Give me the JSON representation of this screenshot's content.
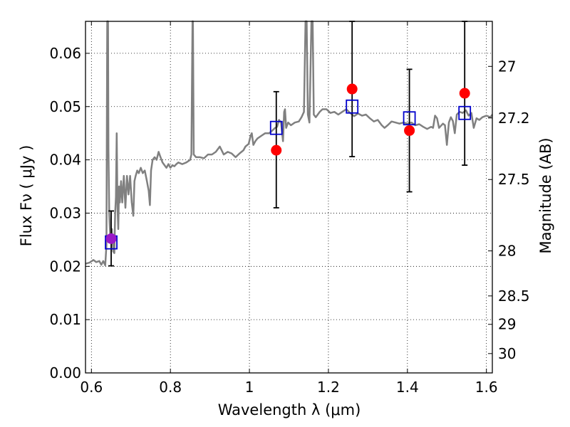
{
  "chart_data": {
    "type": "scatter",
    "title": "",
    "xlabel": "Wavelength  λ (μm)",
    "ylabel": "Flux  Fν  ( μJy )",
    "y2label": "Magnitude (AB)",
    "xlim": [
      0.585,
      1.615
    ],
    "ylim": [
      0.0,
      0.066
    ],
    "grid": true,
    "x_ticks": [
      {
        "value": 0.6,
        "label": "0.6"
      },
      {
        "value": 0.8,
        "label": "0.8"
      },
      {
        "value": 1.0,
        "label": "1"
      },
      {
        "value": 1.2,
        "label": "1.2"
      },
      {
        "value": 1.4,
        "label": "1.4"
      },
      {
        "value": 1.6,
        "label": "1.6"
      }
    ],
    "y_ticks": [
      {
        "value": 0.0,
        "label": "0.00"
      },
      {
        "value": 0.01,
        "label": "0.01"
      },
      {
        "value": 0.02,
        "label": "0.02"
      },
      {
        "value": 0.03,
        "label": "0.03"
      },
      {
        "value": 0.04,
        "label": "0.04"
      },
      {
        "value": 0.05,
        "label": "0.05"
      },
      {
        "value": 0.06,
        "label": "0.06"
      }
    ],
    "y2_ticks": [
      {
        "value": 27,
        "label": "27"
      },
      {
        "value": 27.2,
        "label": "27.2"
      },
      {
        "value": 27.5,
        "label": "27.5"
      },
      {
        "value": 28,
        "label": "28"
      },
      {
        "value": 28.5,
        "label": "28.5"
      },
      {
        "value": 29,
        "label": "29"
      },
      {
        "value": 30,
        "label": "30"
      }
    ],
    "spectrum": {
      "color": "#808080",
      "points": [
        [
          0.585,
          0.0205
        ],
        [
          0.595,
          0.0207
        ],
        [
          0.605,
          0.0212
        ],
        [
          0.612,
          0.0208
        ],
        [
          0.62,
          0.021
        ],
        [
          0.625,
          0.0203
        ],
        [
          0.63,
          0.021
        ],
        [
          0.635,
          0.0202
        ],
        [
          0.638,
          0.024
        ],
        [
          0.64,
          0.066
        ],
        [
          0.642,
          0.066
        ],
        [
          0.643,
          0.042
        ],
        [
          0.645,
          0.03
        ],
        [
          0.648,
          0.025
        ],
        [
          0.652,
          0.027
        ],
        [
          0.655,
          0.0228
        ],
        [
          0.658,
          0.0225
        ],
        [
          0.66,
          0.03
        ],
        [
          0.662,
          0.033
        ],
        [
          0.664,
          0.045
        ],
        [
          0.666,
          0.031
        ],
        [
          0.668,
          0.027
        ],
        [
          0.67,
          0.035
        ],
        [
          0.672,
          0.032
        ],
        [
          0.675,
          0.036
        ],
        [
          0.678,
          0.032
        ],
        [
          0.682,
          0.037
        ],
        [
          0.686,
          0.031
        ],
        [
          0.69,
          0.037
        ],
        [
          0.694,
          0.0335
        ],
        [
          0.698,
          0.037
        ],
        [
          0.702,
          0.032
        ],
        [
          0.706,
          0.0295
        ],
        [
          0.709,
          0.036
        ],
        [
          0.712,
          0.037
        ],
        [
          0.716,
          0.038
        ],
        [
          0.72,
          0.0375
        ],
        [
          0.725,
          0.0385
        ],
        [
          0.73,
          0.0375
        ],
        [
          0.735,
          0.038
        ],
        [
          0.74,
          0.0362
        ],
        [
          0.745,
          0.0342
        ],
        [
          0.748,
          0.0315
        ],
        [
          0.751,
          0.038
        ],
        [
          0.755,
          0.04
        ],
        [
          0.76,
          0.0405
        ],
        [
          0.765,
          0.04
        ],
        [
          0.77,
          0.0415
        ],
        [
          0.775,
          0.0405
        ],
        [
          0.78,
          0.0395
        ],
        [
          0.785,
          0.039
        ],
        [
          0.79,
          0.0385
        ],
        [
          0.795,
          0.0392
        ],
        [
          0.8,
          0.0385
        ],
        [
          0.805,
          0.039
        ],
        [
          0.81,
          0.0388
        ],
        [
          0.815,
          0.0392
        ],
        [
          0.82,
          0.0395
        ],
        [
          0.83,
          0.0392
        ],
        [
          0.84,
          0.0395
        ],
        [
          0.85,
          0.04
        ],
        [
          0.853,
          0.041
        ],
        [
          0.856,
          0.066
        ],
        [
          0.857,
          0.066
        ],
        [
          0.859,
          0.041
        ],
        [
          0.865,
          0.0405
        ],
        [
          0.875,
          0.0405
        ],
        [
          0.885,
          0.0403
        ],
        [
          0.895,
          0.041
        ],
        [
          0.905,
          0.041
        ],
        [
          0.915,
          0.0415
        ],
        [
          0.925,
          0.0425
        ],
        [
          0.935,
          0.041
        ],
        [
          0.945,
          0.0415
        ],
        [
          0.955,
          0.0412
        ],
        [
          0.965,
          0.0405
        ],
        [
          0.975,
          0.0412
        ],
        [
          0.985,
          0.0418
        ],
        [
          0.99,
          0.0425
        ],
        [
          0.998,
          0.043
        ],
        [
          1.003,
          0.0445
        ],
        [
          1.006,
          0.045
        ],
        [
          1.01,
          0.0428
        ],
        [
          1.015,
          0.0435
        ],
        [
          1.02,
          0.044
        ],
        [
          1.03,
          0.0445
        ],
        [
          1.04,
          0.045
        ],
        [
          1.05,
          0.045
        ],
        [
          1.058,
          0.0455
        ],
        [
          1.065,
          0.046
        ],
        [
          1.07,
          0.0462
        ],
        [
          1.075,
          0.0475
        ],
        [
          1.08,
          0.047
        ],
        [
          1.085,
          0.0435
        ],
        [
          1.088,
          0.049
        ],
        [
          1.09,
          0.0495
        ],
        [
          1.093,
          0.046
        ],
        [
          1.098,
          0.047
        ],
        [
          1.105,
          0.0465
        ],
        [
          1.115,
          0.047
        ],
        [
          1.125,
          0.0472
        ],
        [
          1.132,
          0.048
        ],
        [
          1.138,
          0.049
        ],
        [
          1.142,
          0.066
        ],
        [
          1.145,
          0.066
        ],
        [
          1.148,
          0.0485
        ],
        [
          1.152,
          0.047
        ],
        [
          1.157,
          0.066
        ],
        [
          1.16,
          0.066
        ],
        [
          1.163,
          0.0485
        ],
        [
          1.168,
          0.048
        ],
        [
          1.178,
          0.049
        ],
        [
          1.185,
          0.0495
        ],
        [
          1.195,
          0.0495
        ],
        [
          1.205,
          0.0488
        ],
        [
          1.215,
          0.049
        ],
        [
          1.225,
          0.0485
        ],
        [
          1.235,
          0.049
        ],
        [
          1.245,
          0.0495
        ],
        [
          1.255,
          0.0488
        ],
        [
          1.265,
          0.0482
        ],
        [
          1.275,
          0.0487
        ],
        [
          1.285,
          0.0483
        ],
        [
          1.295,
          0.0485
        ],
        [
          1.305,
          0.0478
        ],
        [
          1.315,
          0.0472
        ],
        [
          1.325,
          0.0475
        ],
        [
          1.335,
          0.0465
        ],
        [
          1.342,
          0.046
        ],
        [
          1.35,
          0.0465
        ],
        [
          1.36,
          0.0472
        ],
        [
          1.37,
          0.047
        ],
        [
          1.38,
          0.0468
        ],
        [
          1.39,
          0.047
        ],
        [
          1.4,
          0.0468
        ],
        [
          1.41,
          0.047
        ],
        [
          1.42,
          0.0465
        ],
        [
          1.43,
          0.0467
        ],
        [
          1.44,
          0.0462
        ],
        [
          1.45,
          0.0458
        ],
        [
          1.46,
          0.0462
        ],
        [
          1.465,
          0.046
        ],
        [
          1.47,
          0.0483
        ],
        [
          1.475,
          0.0478
        ],
        [
          1.48,
          0.046
        ],
        [
          1.49,
          0.0468
        ],
        [
          1.495,
          0.0465
        ],
        [
          1.5,
          0.0428
        ],
        [
          1.505,
          0.047
        ],
        [
          1.51,
          0.048
        ],
        [
          1.515,
          0.0473
        ],
        [
          1.52,
          0.045
        ],
        [
          1.525,
          0.0485
        ],
        [
          1.532,
          0.049
        ],
        [
          1.54,
          0.0488
        ],
        [
          1.548,
          0.0493
        ],
        [
          1.555,
          0.0483
        ],
        [
          1.562,
          0.0488
        ],
        [
          1.568,
          0.046
        ],
        [
          1.575,
          0.0478
        ],
        [
          1.582,
          0.0475
        ],
        [
          1.59,
          0.048
        ],
        [
          1.6,
          0.0483
        ],
        [
          1.61,
          0.048
        ],
        [
          1.615,
          0.0485
        ]
      ]
    },
    "model_points": {
      "marker": "square",
      "color": "#0000cc",
      "points": [
        [
          0.65,
          0.0245
        ],
        [
          1.068,
          0.046
        ],
        [
          1.26,
          0.05
        ],
        [
          1.405,
          0.0478
        ],
        [
          1.545,
          0.0488
        ]
      ]
    },
    "observed_points": {
      "marker": "circle",
      "color": "#ff0000",
      "first_color": "#9b19c7",
      "points": [
        {
          "x": 0.65,
          "y": 0.0252,
          "err_low": 0.0051,
          "err_high": 0.0052
        },
        {
          "x": 1.068,
          "y": 0.0418,
          "err_low": 0.0108,
          "err_high": 0.011
        },
        {
          "x": 1.26,
          "y": 0.0533,
          "err_low": 0.0127,
          "err_high": 0.0127
        },
        {
          "x": 1.405,
          "y": 0.0455,
          "err_low": 0.0115,
          "err_high": 0.0115
        },
        {
          "x": 1.545,
          "y": 0.0525,
          "err_low": 0.0135,
          "err_high": 0.0135
        }
      ]
    }
  }
}
